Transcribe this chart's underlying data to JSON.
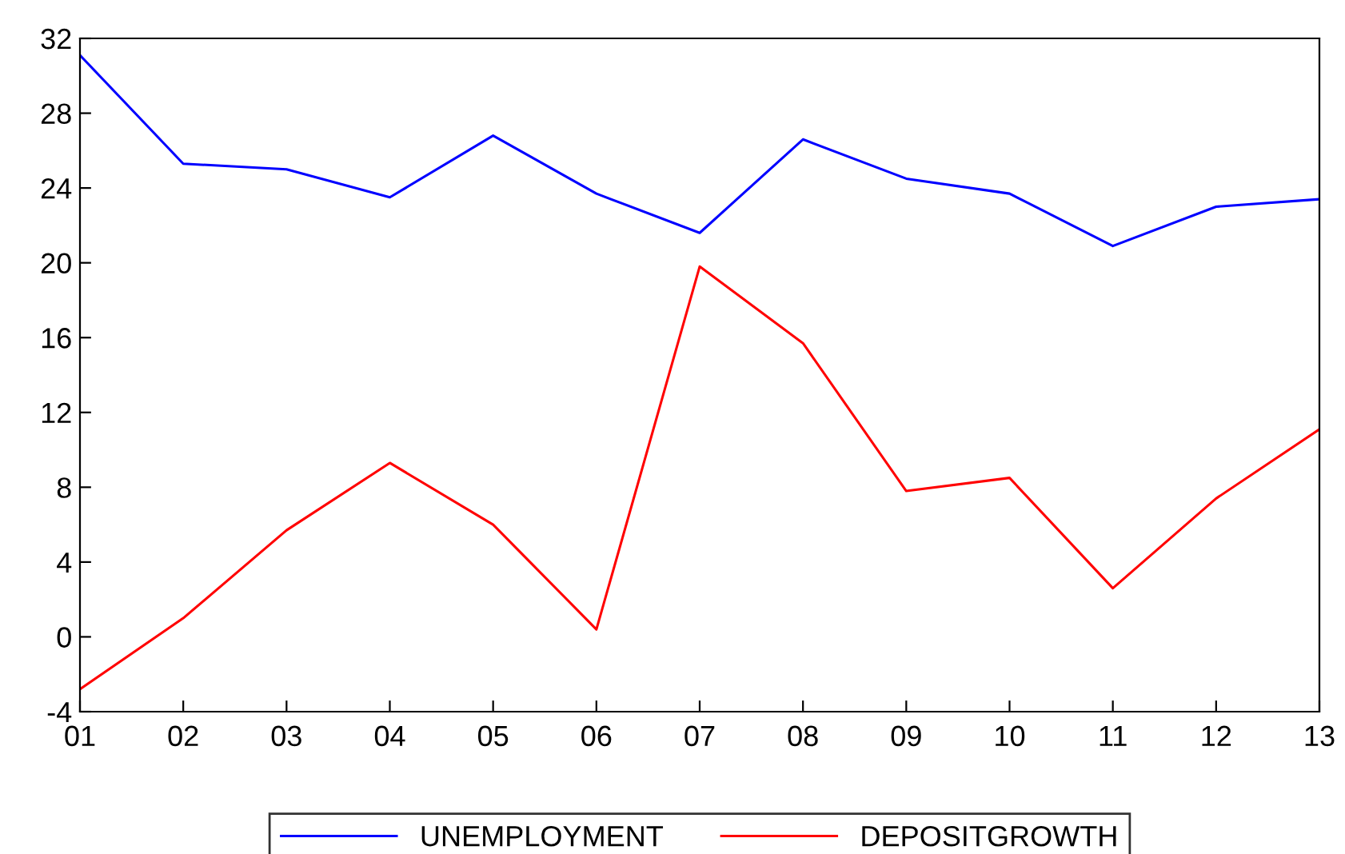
{
  "chart_data": {
    "type": "line",
    "categories": [
      "01",
      "02",
      "03",
      "04",
      "05",
      "06",
      "07",
      "08",
      "09",
      "10",
      "11",
      "12",
      "13"
    ],
    "series": [
      {
        "name": "UNEMPLOYMENT",
        "color": "#0000ff",
        "values": [
          31.1,
          25.3,
          25.0,
          23.5,
          26.8,
          23.7,
          21.6,
          26.6,
          24.5,
          23.7,
          20.9,
          23.0,
          23.4
        ]
      },
      {
        "name": "DEPOSITGROWTH",
        "color": "#ff0000",
        "values": [
          -2.8,
          1.0,
          5.7,
          9.3,
          6.0,
          0.4,
          19.8,
          15.7,
          7.8,
          8.5,
          2.6,
          7.4,
          11.1
        ]
      }
    ],
    "ylim": [
      -4,
      32
    ],
    "yticks": [
      -4,
      0,
      4,
      8,
      12,
      16,
      20,
      24,
      28,
      32
    ],
    "grid": false,
    "legend": "bottom",
    "marker": "none",
    "line_style": "solid"
  }
}
